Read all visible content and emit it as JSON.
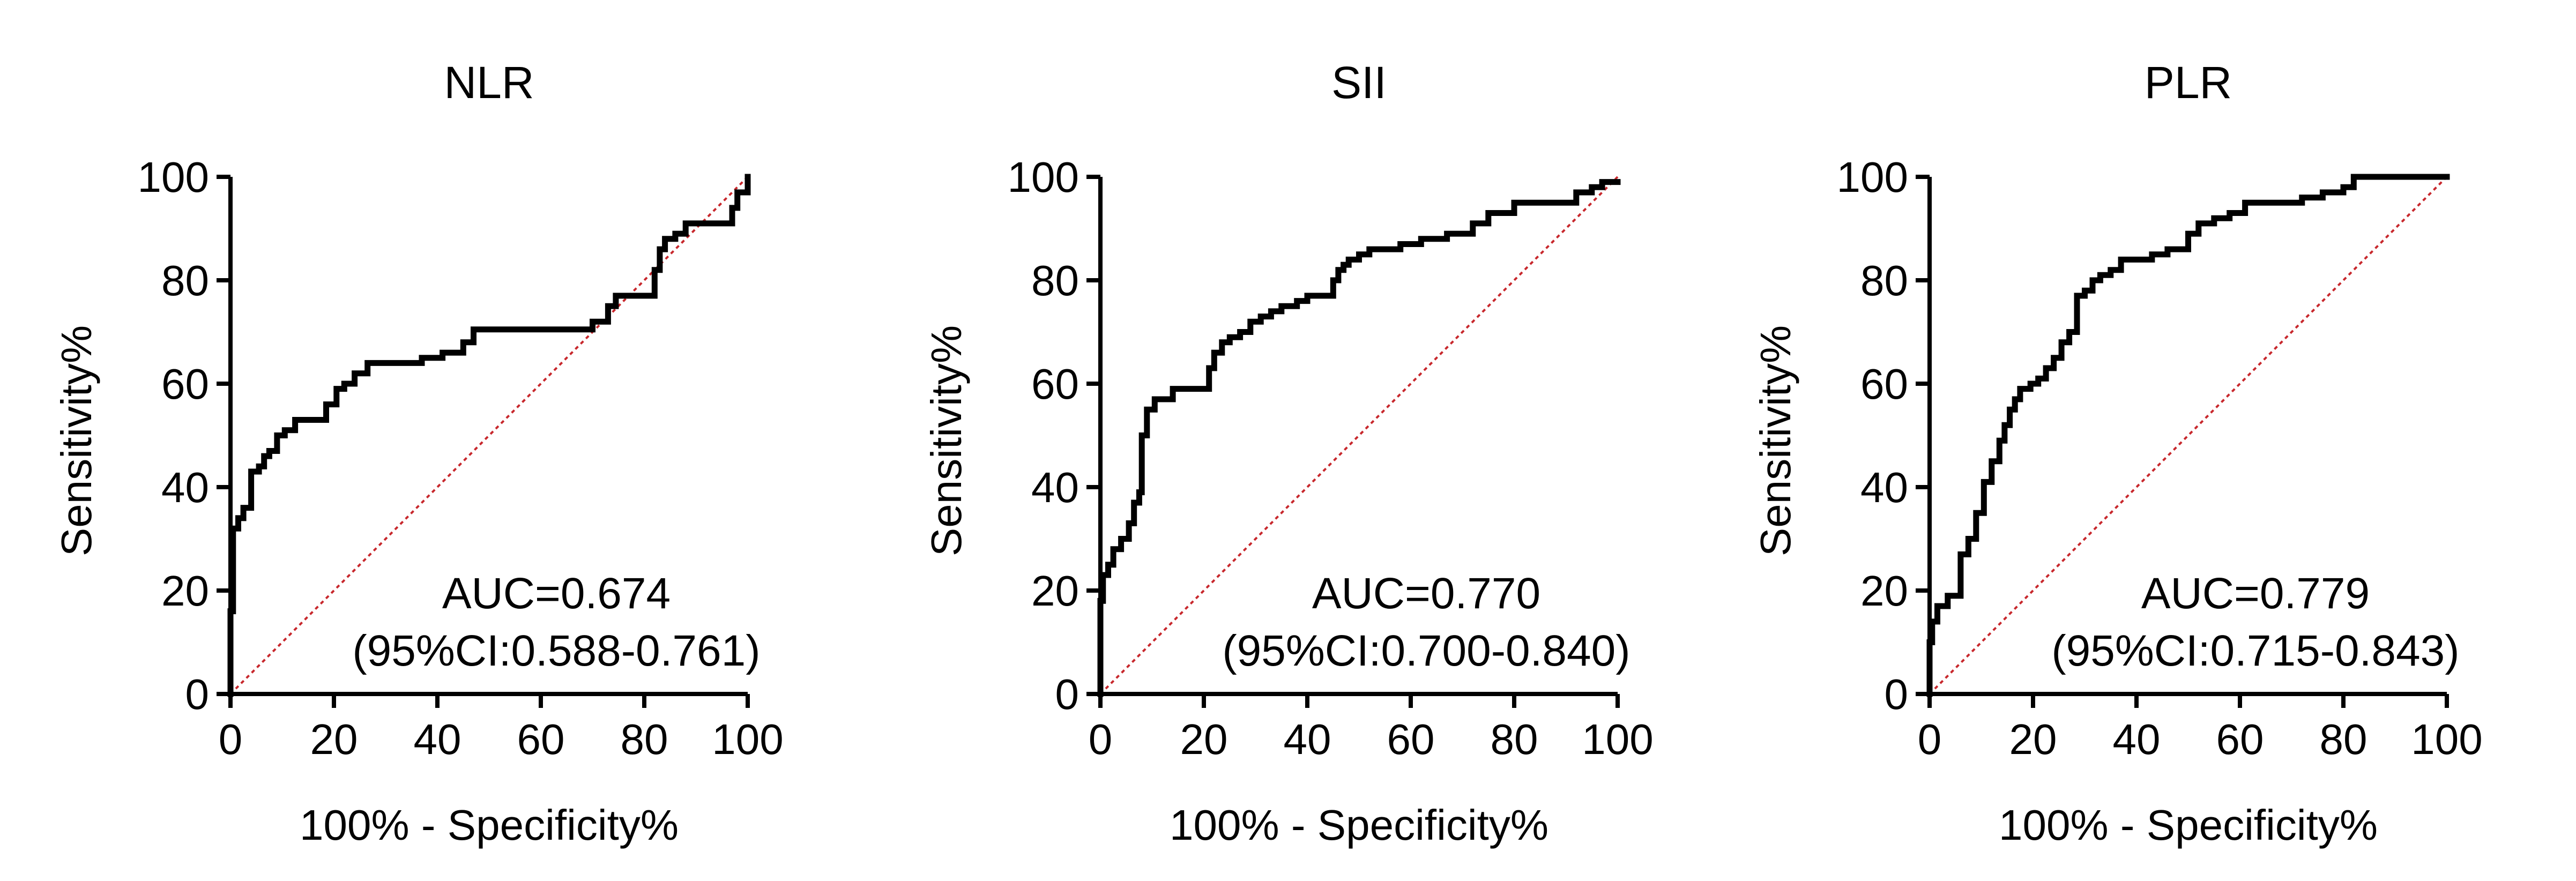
{
  "chart_data": [
    {
      "type": "line",
      "title": "NLR",
      "xlabel": "100% - Specificity%",
      "ylabel": "Sensitivity%",
      "xlim": [
        0,
        100
      ],
      "ylim": [
        0,
        100
      ],
      "xticks": [
        "0",
        "20",
        "40",
        "60",
        "80",
        "100"
      ],
      "yticks": [
        "0",
        "20",
        "40",
        "60",
        "80",
        "100"
      ],
      "grid": false,
      "auc_text": "AUC=0.674",
      "ci_text": "(95%CI:0.588-0.761)",
      "reference_line": {
        "x": [
          0,
          100
        ],
        "y": [
          0,
          100
        ],
        "color": "#c8282d",
        "style": "dotted"
      },
      "series": [
        {
          "color": "#000000",
          "x": [
            0,
            0,
            0.5,
            0.5,
            1.5,
            1.5,
            2.5,
            2.5,
            4,
            4,
            5.5,
            5.5,
            6.5,
            6.5,
            7.5,
            7.5,
            9,
            9,
            10.5,
            10.5,
            12.5,
            12.5,
            15,
            15,
            18.5,
            18.5,
            20.5,
            20.5,
            22,
            22,
            24,
            24,
            26.5,
            26.5,
            37,
            37,
            41,
            41,
            45,
            45,
            47,
            47,
            66,
            66,
            70,
            70,
            73,
            73,
            74.5,
            74.5,
            82,
            82,
            83,
            83,
            84,
            84,
            86,
            86,
            88,
            88,
            91,
            91,
            97,
            97,
            98,
            98,
            100,
            100
          ],
          "y": [
            0,
            16,
            16,
            32,
            32,
            34,
            34,
            36,
            36,
            43,
            43,
            44,
            44,
            46,
            46,
            47,
            47,
            50,
            50,
            51,
            51,
            53,
            53,
            53,
            53,
            56,
            56,
            59,
            59,
            60,
            60,
            62,
            62,
            64,
            64,
            65,
            65,
            66,
            66,
            68,
            68,
            70.5,
            70.5,
            70.5,
            70.5,
            72,
            72,
            75,
            75,
            77,
            77,
            82,
            82,
            86,
            86,
            88,
            88,
            89,
            89,
            91,
            91,
            91,
            91,
            94,
            94,
            97,
            97,
            100
          ]
        }
      ]
    },
    {
      "type": "line",
      "title": "SII",
      "xlabel": "100% - Specificity%",
      "ylabel": "Sensitivity%",
      "xlim": [
        0,
        100
      ],
      "ylim": [
        0,
        100
      ],
      "xticks": [
        "0",
        "20",
        "40",
        "60",
        "80",
        "100"
      ],
      "yticks": [
        "0",
        "20",
        "40",
        "60",
        "80",
        "100"
      ],
      "grid": false,
      "auc_text": "AUC=0.770",
      "ci_text": "(95%CI:0.700-0.840)",
      "reference_line": {
        "x": [
          0,
          100
        ],
        "y": [
          0,
          100
        ],
        "color": "#c8282d",
        "style": "dotted"
      },
      "series": [
        {
          "color": "#000000",
          "x": [
            0,
            0,
            0.5,
            0.5,
            1.5,
            1.5,
            2.5,
            2.5,
            4,
            4,
            5.5,
            5.5,
            6.5,
            6.5,
            7.5,
            7.5,
            8,
            8,
            9,
            9,
            10.5,
            10.5,
            12.5,
            12.5,
            14,
            14,
            16,
            16,
            21,
            21,
            22,
            22,
            23.5,
            23.5,
            25,
            25,
            27,
            27,
            29,
            29,
            31,
            31,
            33,
            33,
            35,
            35,
            38,
            38,
            40,
            40,
            45,
            45,
            46,
            46,
            47,
            47,
            48,
            48,
            50,
            50,
            52,
            52,
            58,
            58,
            62,
            62,
            67,
            67,
            72,
            72,
            75,
            75,
            80,
            80,
            86,
            86,
            92,
            92,
            95,
            95,
            97,
            97,
            100
          ],
          "y": [
            0,
            18,
            18,
            23,
            23,
            25,
            25,
            28,
            28,
            30,
            30,
            33,
            33,
            37,
            37,
            39,
            39,
            50,
            50,
            55,
            55,
            57,
            57,
            57,
            57,
            59,
            59,
            59,
            59,
            63,
            63,
            66,
            66,
            68,
            68,
            69,
            69,
            70,
            70,
            72,
            72,
            73,
            73,
            74,
            74,
            75,
            75,
            76,
            76,
            77,
            77,
            80,
            80,
            82,
            82,
            83,
            83,
            84,
            84,
            85,
            85,
            86,
            86,
            87,
            87,
            88,
            88,
            89,
            89,
            91,
            91,
            93,
            93,
            95,
            95,
            95,
            95,
            97,
            97,
            98,
            98,
            99,
            99
          ]
        }
      ]
    },
    {
      "type": "line",
      "title": "PLR",
      "xlabel": "100% - Specificity%",
      "ylabel": "Sensitivity%",
      "xlim": [
        0,
        100
      ],
      "ylim": [
        0,
        100
      ],
      "xticks": [
        "0",
        "20",
        "40",
        "60",
        "80",
        "100"
      ],
      "yticks": [
        "0",
        "20",
        "40",
        "60",
        "80",
        "100"
      ],
      "grid": false,
      "auc_text": "AUC=0.779",
      "ci_text": "(95%CI:0.715-0.843)",
      "reference_line": {
        "x": [
          0,
          100
        ],
        "y": [
          0,
          100
        ],
        "color": "#c8282d",
        "style": "dotted"
      },
      "series": [
        {
          "color": "#000000",
          "x": [
            0,
            0,
            0.5,
            0.5,
            1.5,
            1.5,
            3.5,
            3.5,
            6,
            6,
            7.5,
            7.5,
            9,
            9,
            10.5,
            10.5,
            12,
            12,
            13.5,
            13.5,
            14.5,
            14.5,
            15.5,
            15.5,
            16.5,
            16.5,
            17.5,
            17.5,
            19.5,
            19.5,
            21,
            21,
            22.5,
            22.5,
            24,
            24,
            25.5,
            25.5,
            27,
            27,
            28.5,
            28.5,
            30,
            30,
            31.5,
            31.5,
            33,
            33,
            35,
            35,
            37,
            37,
            43,
            43,
            46,
            46,
            50,
            50,
            52,
            52,
            55,
            55,
            58,
            58,
            61,
            61,
            72,
            72,
            76,
            76,
            80,
            80,
            82,
            82,
            100
          ],
          "y": [
            0,
            10,
            10,
            14,
            14,
            17,
            17,
            19,
            19,
            27,
            27,
            30,
            30,
            35,
            35,
            41,
            41,
            45,
            45,
            49,
            49,
            52,
            52,
            55,
            55,
            57,
            57,
            59,
            59,
            60,
            60,
            61,
            61,
            63,
            63,
            65,
            65,
            68,
            68,
            70,
            70,
            77,
            77,
            78,
            78,
            80,
            80,
            81,
            81,
            82,
            82,
            84,
            84,
            85,
            85,
            86,
            86,
            89,
            89,
            91,
            91,
            92,
            92,
            93,
            93,
            95,
            95,
            96,
            96,
            97,
            97,
            98,
            98,
            100,
            100
          ]
        }
      ]
    }
  ]
}
